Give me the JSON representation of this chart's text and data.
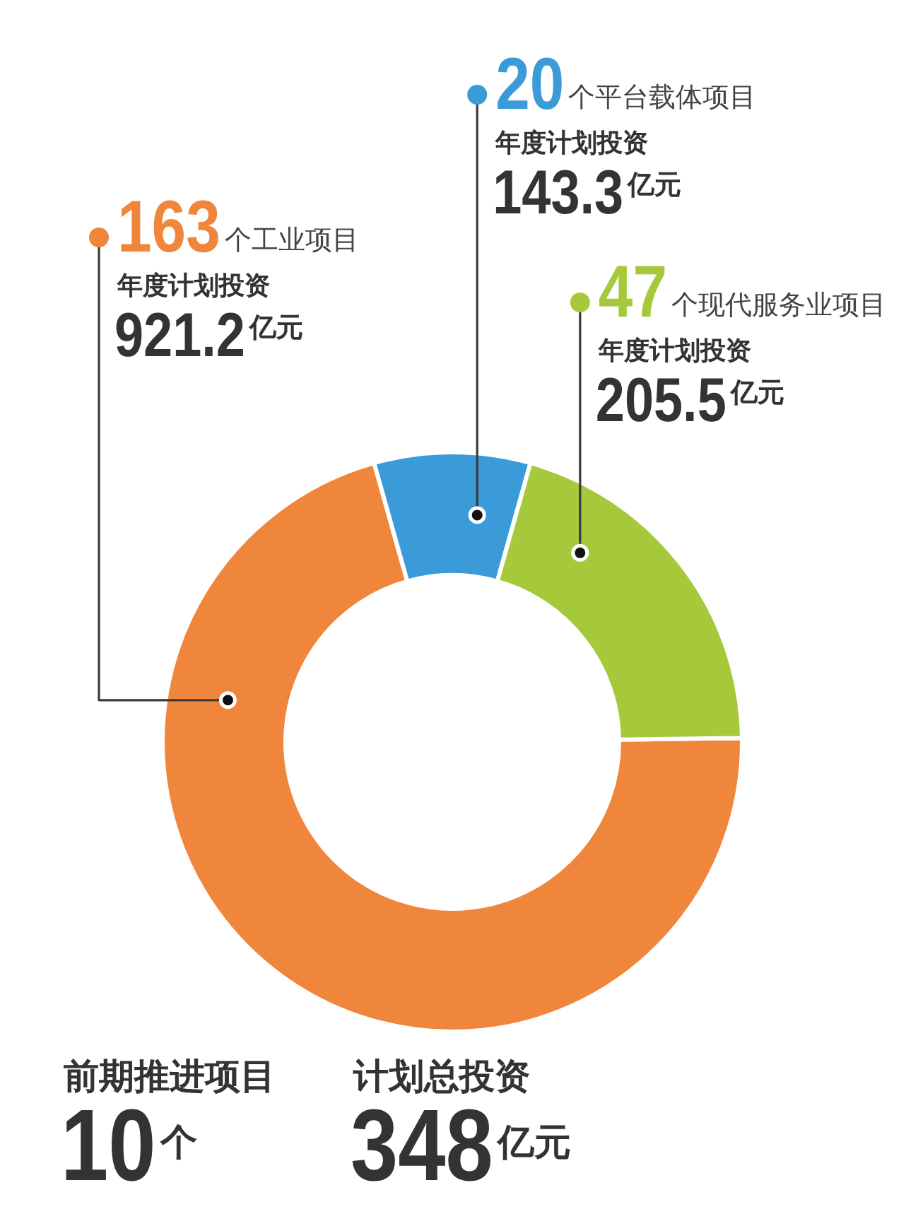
{
  "chart_data": {
    "type": "donut",
    "categories": [
      "个工业项目",
      "个平台载体项目",
      "个现代服务业项目"
    ],
    "values": [
      163,
      20,
      47
    ],
    "colors": [
      "#f0863b",
      "#3a9bd8",
      "#a5c93b"
    ],
    "data_labels": true,
    "annotations": [
      {
        "text": "年度计划投资\n921.2亿元",
        "x": "个工业项目"
      },
      {
        "text": "年度计划投资\n143.3亿元",
        "x": "个平台载体项目"
      },
      {
        "text": "年度计划投资\n205.5亿元",
        "x": "个现代服务业项目"
      },
      "前期推进项目\n10个",
      "计划总投资\n348亿元"
    ]
  }
}
